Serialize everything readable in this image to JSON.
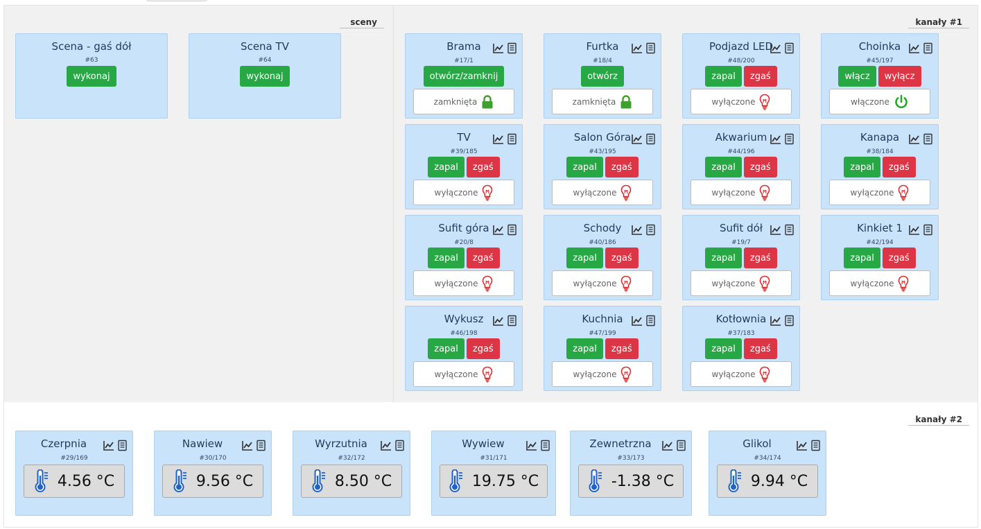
{
  "scenes": {
    "label": "sceny",
    "items": [
      {
        "title": "Scena - gaś dół",
        "id": "#63",
        "button": "wykonaj"
      },
      {
        "title": "Scena TV",
        "id": "#64",
        "button": "wykonaj"
      }
    ]
  },
  "channels1": {
    "label": "kanały #1",
    "items": [
      {
        "title": "Brama",
        "id": "#17/1",
        "buttons": [
          "otwórz/zamknij"
        ],
        "state": "zamknięta",
        "icon": "lock-icon"
      },
      {
        "title": "Furtka",
        "id": "#18/4",
        "buttons": [
          "otwórz"
        ],
        "state": "zamknięta",
        "icon": "lock-icon"
      },
      {
        "title": "Podjazd LED",
        "id": "#48/200",
        "buttons": [
          "zapal",
          "zgaś"
        ],
        "state": "wyłączone",
        "icon": "bulb-icon"
      },
      {
        "title": "Choinka",
        "id": "#45/197",
        "buttons": [
          "włącz",
          "wyłącz"
        ],
        "state": "włączone",
        "icon": "power-icon"
      },
      {
        "title": "TV",
        "id": "#39/185",
        "buttons": [
          "zapal",
          "zgaś"
        ],
        "state": "wyłączone",
        "icon": "bulb-icon"
      },
      {
        "title": "Salon Góra",
        "id": "#43/195",
        "buttons": [
          "zapal",
          "zgaś"
        ],
        "state": "wyłączone",
        "icon": "bulb-icon"
      },
      {
        "title": "Akwarium",
        "id": "#44/196",
        "buttons": [
          "zapal",
          "zgaś"
        ],
        "state": "wyłączone",
        "icon": "bulb-icon"
      },
      {
        "title": "Kanapa",
        "id": "#38/184",
        "buttons": [
          "zapal",
          "zgaś"
        ],
        "state": "wyłączone",
        "icon": "bulb-icon"
      },
      {
        "title": "Sufit góra",
        "id": "#20/8",
        "buttons": [
          "zapal",
          "zgaś"
        ],
        "state": "wyłączone",
        "icon": "bulb-icon"
      },
      {
        "title": "Schody",
        "id": "#40/186",
        "buttons": [
          "zapal",
          "zgaś"
        ],
        "state": "wyłączone",
        "icon": "bulb-icon"
      },
      {
        "title": "Sufit dół",
        "id": "#19/7",
        "buttons": [
          "zapal",
          "zgaś"
        ],
        "state": "wyłączone",
        "icon": "bulb-icon"
      },
      {
        "title": "Kinkiet 1",
        "id": "#42/194",
        "buttons": [
          "zapal",
          "zgaś"
        ],
        "state": "wyłączone",
        "icon": "bulb-icon"
      },
      {
        "title": "Wykusz",
        "id": "#46/198",
        "buttons": [
          "zapal",
          "zgaś"
        ],
        "state": "wyłączone",
        "icon": "bulb-icon"
      },
      {
        "title": "Kuchnia",
        "id": "#47/199",
        "buttons": [
          "zapal",
          "zgaś"
        ],
        "state": "wyłączone",
        "icon": "bulb-icon"
      },
      {
        "title": "Kotłownia",
        "id": "#37/183",
        "buttons": [
          "zapal",
          "zgaś"
        ],
        "state": "wyłączone",
        "icon": "bulb-icon"
      }
    ]
  },
  "channels2": {
    "label": "kanały #2",
    "items": [
      {
        "title": "Czerpnia",
        "id": "#29/169",
        "value": "4.56 °C"
      },
      {
        "title": "Nawiew",
        "id": "#30/170",
        "value": "9.56 °C"
      },
      {
        "title": "Wyrzutnia",
        "id": "#32/172",
        "value": "8.50 °C"
      },
      {
        "title": "Wywiew",
        "id": "#31/171",
        "value": "19.75 °C"
      },
      {
        "title": "Zewnetrzna",
        "id": "#33/173",
        "value": "-1.38 °C"
      },
      {
        "title": "Glikol",
        "id": "#34/174",
        "value": "9.94 °C"
      }
    ]
  },
  "icons": {
    "chart": "chart-icon",
    "log": "log-icon",
    "thermometer": "thermometer-icon"
  },
  "colors": {
    "card_bg": "#c9e3fb",
    "green": "#28a745",
    "red": "#dc3545",
    "on": "#28a745",
    "off": "#dc3545"
  }
}
